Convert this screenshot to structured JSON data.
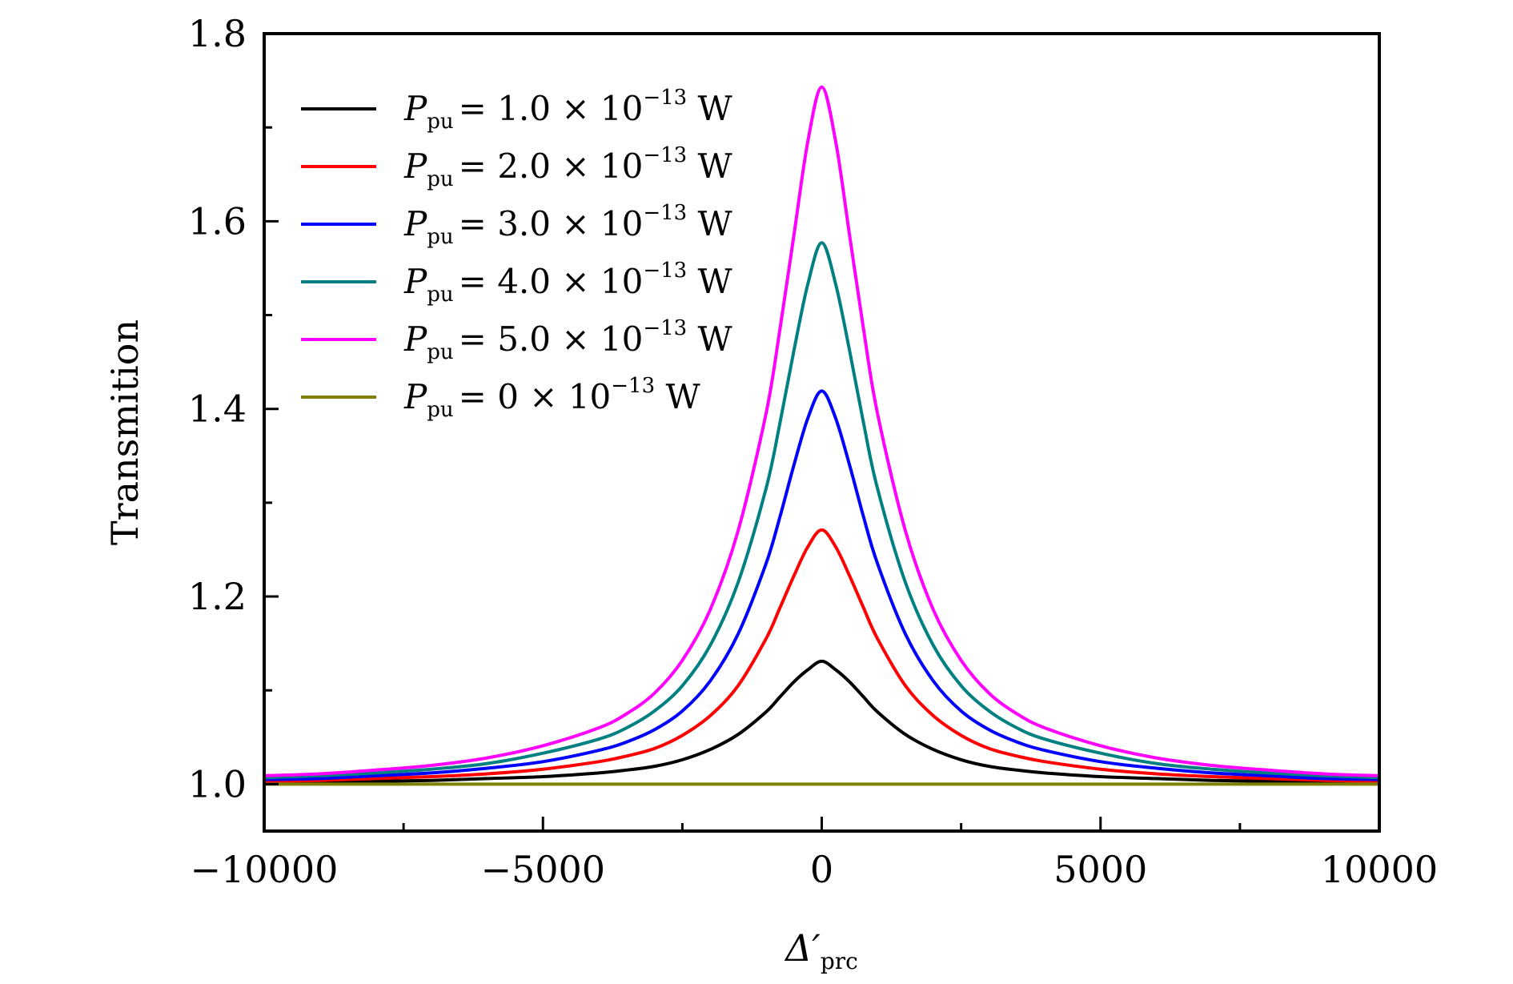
{
  "chart_data": {
    "type": "line",
    "title": "",
    "xlabel": {
      "main": "Δ′",
      "sub": "prc"
    },
    "ylabel": "Transmition",
    "xlim": [
      -10000,
      10000
    ],
    "ylim": [
      0.95,
      1.8
    ],
    "xticks": [
      -10000,
      -5000,
      0,
      5000,
      10000
    ],
    "xtick_labels": [
      "−10000",
      "−5000",
      "0",
      "5000",
      "10000"
    ],
    "x_minor_ticks": [
      -7500,
      -2500,
      2500,
      7500
    ],
    "yticks": [
      1.0,
      1.2,
      1.4,
      1.6,
      1.8
    ],
    "ytick_labels": [
      "1.0",
      "1.2",
      "1.4",
      "1.6",
      "1.8"
    ],
    "y_minor_ticks": [
      1.1,
      1.3,
      1.5,
      1.7
    ],
    "grid": false,
    "legend_position": "top-left",
    "x": [
      -10000,
      -9000,
      -8000,
      -7000,
      -6000,
      -5000,
      -4000,
      -3500,
      -3000,
      -2500,
      -2000,
      -1500,
      -1000,
      -750,
      -500,
      -250,
      0,
      250,
      500,
      750,
      1000,
      1500,
      2000,
      2500,
      3000,
      3500,
      4000,
      5000,
      6000,
      7000,
      8000,
      9000,
      10000
    ],
    "series": [
      {
        "name": {
          "sym": "P",
          "sub": "pu",
          "rest": "= 1.0 × 10",
          "exp": "−13",
          "unit": " W"
        },
        "color": "#000000",
        "values": [
          1.002,
          1.002,
          1.003,
          1.004,
          1.006,
          1.008,
          1.012,
          1.015,
          1.019,
          1.026,
          1.037,
          1.053,
          1.077,
          1.093,
          1.109,
          1.122,
          1.131,
          1.122,
          1.109,
          1.093,
          1.077,
          1.053,
          1.037,
          1.026,
          1.019,
          1.015,
          1.012,
          1.008,
          1.006,
          1.004,
          1.003,
          1.002,
          1.002
        ]
      },
      {
        "name": {
          "sym": "P",
          "sub": "pu",
          "rest": "= 2.0 × 10",
          "exp": "−13",
          "unit": " W"
        },
        "color": "#ff0000",
        "values": [
          1.003,
          1.004,
          1.006,
          1.008,
          1.011,
          1.016,
          1.024,
          1.03,
          1.038,
          1.052,
          1.073,
          1.105,
          1.155,
          1.188,
          1.222,
          1.253,
          1.271,
          1.253,
          1.222,
          1.188,
          1.155,
          1.105,
          1.073,
          1.052,
          1.038,
          1.03,
          1.024,
          1.016,
          1.011,
          1.008,
          1.006,
          1.004,
          1.003
        ]
      },
      {
        "name": {
          "sym": "P",
          "sub": "pu",
          "rest": "= 3.0 × 10",
          "exp": "−13",
          "unit": " W"
        },
        "color": "#0000ff",
        "values": [
          1.005,
          1.006,
          1.009,
          1.012,
          1.017,
          1.024,
          1.036,
          1.045,
          1.058,
          1.078,
          1.11,
          1.16,
          1.235,
          1.285,
          1.34,
          1.39,
          1.419,
          1.39,
          1.34,
          1.285,
          1.235,
          1.16,
          1.11,
          1.078,
          1.058,
          1.045,
          1.036,
          1.024,
          1.017,
          1.012,
          1.009,
          1.006,
          1.005
        ]
      },
      {
        "name": {
          "sym": "P",
          "sub": "pu",
          "rest": "= 4.0 × 10",
          "exp": "−13",
          "unit": " W"
        },
        "color": "#008080",
        "values": [
          1.007,
          1.009,
          1.012,
          1.016,
          1.022,
          1.033,
          1.048,
          1.06,
          1.078,
          1.105,
          1.148,
          1.215,
          1.315,
          1.385,
          1.462,
          1.533,
          1.577,
          1.533,
          1.462,
          1.385,
          1.315,
          1.215,
          1.148,
          1.105,
          1.078,
          1.06,
          1.048,
          1.033,
          1.022,
          1.016,
          1.012,
          1.009,
          1.007
        ]
      },
      {
        "name": {
          "sym": "P",
          "sub": "pu",
          "rest": "= 5.0 × 10",
          "exp": "−13",
          "unit": " W"
        },
        "color": "#ff00ff",
        "values": [
          1.009,
          1.011,
          1.015,
          1.02,
          1.028,
          1.041,
          1.06,
          1.075,
          1.097,
          1.132,
          1.186,
          1.27,
          1.395,
          1.485,
          1.585,
          1.685,
          1.743,
          1.685,
          1.585,
          1.485,
          1.395,
          1.27,
          1.186,
          1.132,
          1.097,
          1.075,
          1.06,
          1.041,
          1.028,
          1.02,
          1.015,
          1.011,
          1.009
        ]
      },
      {
        "name": {
          "sym": "P",
          "sub": "pu",
          "rest": "= 0 × 10",
          "exp": "−13",
          "unit": " W"
        },
        "color": "#808000",
        "values": [
          1.0,
          1.0,
          1.0,
          1.0,
          1.0,
          1.0,
          1.0,
          1.0,
          1.0,
          1.0,
          1.0,
          1.0,
          1.0,
          1.0,
          1.0,
          1.0,
          1.0,
          1.0,
          1.0,
          1.0,
          1.0,
          1.0,
          1.0,
          1.0,
          1.0,
          1.0,
          1.0,
          1.0,
          1.0,
          1.0,
          1.0,
          1.0,
          1.0
        ]
      }
    ]
  }
}
